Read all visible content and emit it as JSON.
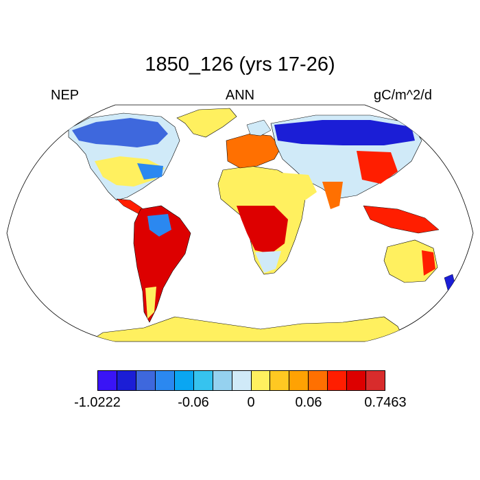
{
  "title": "1850_126 (yrs 17-26)",
  "left_label": "NEP",
  "center_label": "ANN",
  "units": "gC/m^2/d",
  "projection": "robinson",
  "colorbar": {
    "colors": [
      "#3a14f6",
      "#1b1ed6",
      "#3e68dd",
      "#2b88f0",
      "#0aa6f2",
      "#36c3ef",
      "#95d1ef",
      "#d0eaf8",
      "#fff05f",
      "#ffc822",
      "#ffa203",
      "#ff7001",
      "#ff1e00",
      "#dd0000",
      "#d82c2c"
    ],
    "tick_labels": [
      "-1.0222",
      "-0.06",
      "0",
      "0.06",
      "0.7463"
    ],
    "tick_boundaries": [
      0,
      5,
      8,
      11,
      15
    ]
  },
  "chart_data": {
    "type": "heatmap",
    "variable": "NEP",
    "season": "ANN",
    "units": "gC/m^2/d",
    "value_range": [
      -1.0222,
      0.7463
    ],
    "regions": [
      {
        "region": "Greenland",
        "color_class": "#fff05f"
      },
      {
        "region": "Antarctica",
        "color_class": "#fff05f"
      },
      {
        "region": "Sahara and Arabia",
        "color_class": "#fff05f"
      },
      {
        "region": "Central Africa",
        "color_class": "#dd0000"
      },
      {
        "region": "Amazon",
        "color_class": "#dd0000"
      },
      {
        "region": "Northern Eurasia",
        "color_class": "#1b1ed6"
      },
      {
        "region": "Southeast Asia",
        "color_class": "#ff1e00"
      },
      {
        "region": "Eastern Australia",
        "color_class": "#ff1e00"
      },
      {
        "region": "Central Australia",
        "color_class": "#fff05f"
      }
    ]
  }
}
